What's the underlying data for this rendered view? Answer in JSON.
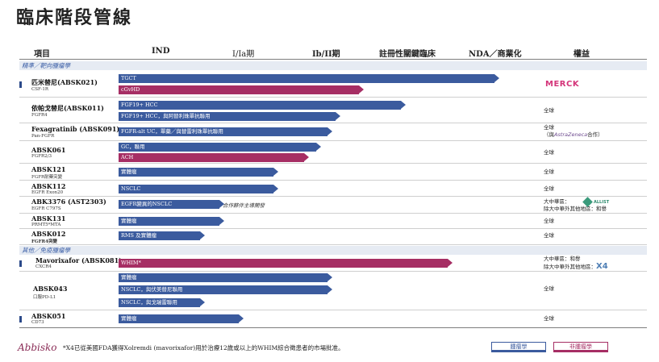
{
  "title": "臨床階段管線",
  "headers": {
    "project": "項目",
    "ind": "IND",
    "phase1": "I/Ia期",
    "phase2": "Ib/II期",
    "registrational": "註冊性關鍵臨床",
    "nda": "NDA／商業化",
    "rights": "權益"
  },
  "sections": {
    "oncology": "精準／靶向腫瘤學",
    "non_oncology": "其他／免疫腫瘤學"
  },
  "rows": [
    {
      "name": "匹米替尼(ABSK021)",
      "target": "CSF-1R",
      "bars": [
        {
          "label": "TGCT",
          "type": "onc",
          "progress": 0.97
        },
        {
          "label": "cGvHD",
          "type": "nonc",
          "progress": 0.62
        }
      ],
      "rights_logo": "MERCK"
    },
    {
      "name": "依帕戈替尼(ABSK011)",
      "target": "FGFR4",
      "bars": [
        {
          "label": "FGF19+ HCC",
          "type": "onc",
          "progress": 0.73
        },
        {
          "label": "FGF19+ HCC，與阿替利珠單抗聯用",
          "type": "onc",
          "progress": 0.56
        }
      ],
      "rights": "全球"
    },
    {
      "name": "Fexagratinib (ABSK091)",
      "target": "Pan-FGFR",
      "bars": [
        {
          "label": "FGFR-alt UC，單藥／與替雷利珠單抗聯用",
          "type": "onc",
          "progress": 0.54
        }
      ],
      "rights": "全球",
      "rights_line2_prefix": "（與",
      "rights_partner": "AstraZeneca",
      "rights_line2_suffix": "合作）"
    },
    {
      "name": "ABSK061",
      "target": "FGFR2/3",
      "bars": [
        {
          "label": "GC，聯用",
          "type": "onc",
          "progress": 0.51
        },
        {
          "label": "ACH",
          "type": "nonc",
          "progress": 0.48
        }
      ],
      "rights": "全球"
    },
    {
      "name": "ABSK121",
      "target": "FGFR耐藥突變",
      "bars": [
        {
          "label": "實體瘤",
          "type": "onc",
          "progress": 0.4
        }
      ],
      "rights": "全球"
    },
    {
      "name": "ABSK112",
      "target": "EGFR Exon20",
      "bars": [
        {
          "label": "NSCLC",
          "type": "onc",
          "progress": 0.4
        }
      ],
      "rights": "全球"
    },
    {
      "name": "ABK3376 (AST2303)",
      "target": "EGFR C797S",
      "bars": [
        {
          "label": "EGFR變異的NSCLC",
          "type": "onc",
          "progress": 0.26
        }
      ],
      "note": "合作夥伴主導開發",
      "rights": "大中華區：",
      "rights_line2": "除大中華外其他地區：和譽",
      "rights_logo": "ALLIST"
    },
    {
      "name": "ABSK131",
      "target": "PRMT5*MTA",
      "bars": [
        {
          "label": "實體瘤",
          "type": "onc",
          "progress": 0.26
        }
      ],
      "rights": "全球"
    },
    {
      "name": "ABSK012",
      "target": "FGFR4突變",
      "bars": [
        {
          "label": "RMS 及實體瘤",
          "type": "onc",
          "progress": 0.21
        }
      ],
      "rights": "全球"
    },
    {
      "name": "Mavorixafor (ABSK081)",
      "target": "CXCR4",
      "bars": [
        {
          "label": "WHIM*",
          "type": "nonc",
          "progress": 0.85
        }
      ],
      "rights": "大中華區：和譽",
      "rights_line2": "除大中華外其他地區：",
      "rights_logo": "X4"
    },
    {
      "name": "ABSK043",
      "target": "口服PD-L1",
      "bars": [
        {
          "label": "實體瘤",
          "type": "onc",
          "progress": 0.54
        },
        {
          "label": "NSCLC，與伏美替尼聯用",
          "type": "onc",
          "progress": 0.54
        },
        {
          "label": "NSCLC，與戈瑞雷聯用",
          "type": "onc",
          "progress": 0.21
        }
      ],
      "rights": "全球"
    },
    {
      "name": "ABSK051",
      "target": "CD73",
      "bars": [
        {
          "label": "實體瘤",
          "type": "onc",
          "progress": 0.31
        }
      ],
      "rights": "全球"
    }
  ],
  "footer": {
    "logo": "Abbisko",
    "footnote": "*X4已從美國FDA獲得Xolremdi (mavorixafor)用於治療12歲或以上的WHIM綜合徵患者的市場批准。",
    "legend_oncology": "腫瘤學",
    "legend_non_oncology": "非腫瘤學"
  }
}
